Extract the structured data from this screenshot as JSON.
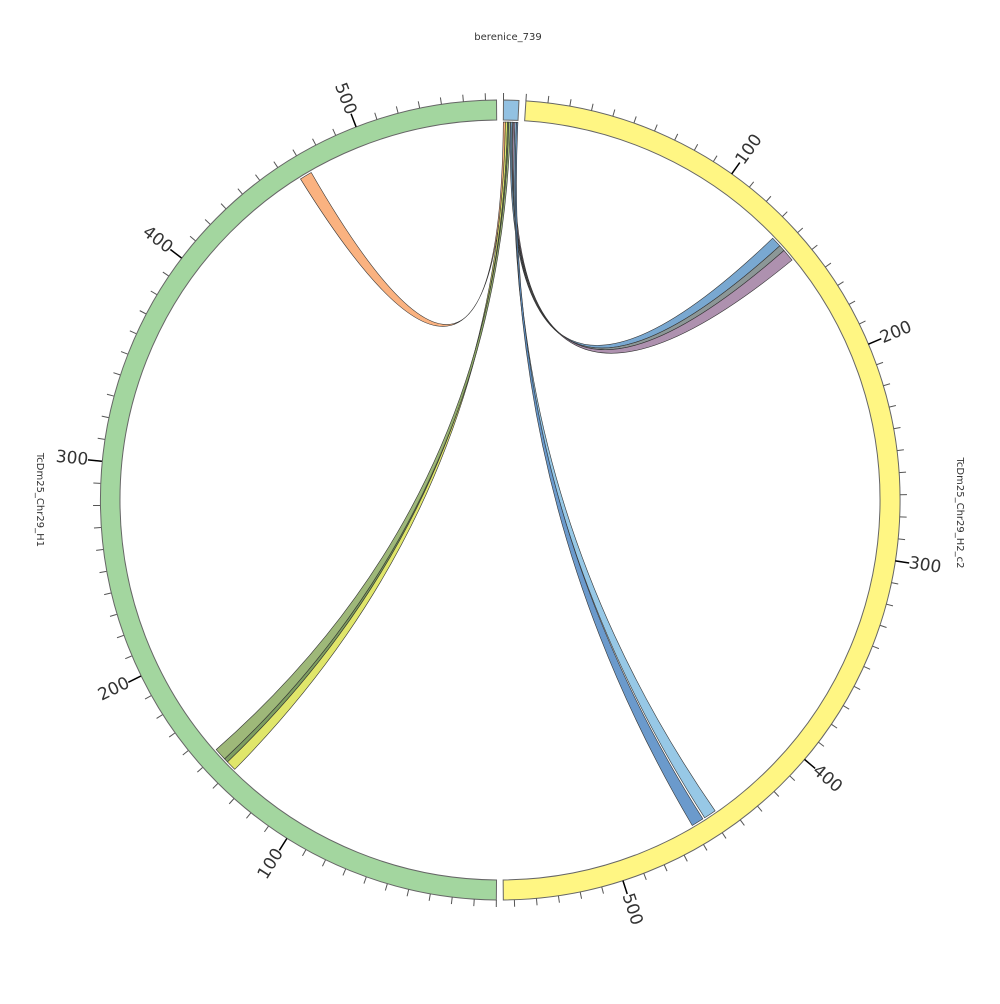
{
  "chart_data": {
    "type": "chord",
    "segments": [
      {
        "name": "berenice_739",
        "length": 7,
        "color": "#92c1e2",
        "major_ticks": [],
        "minor_tick_interval": 10
      },
      {
        "name": "TcDm25_Chr29_H2_c2",
        "length": 555,
        "color": "#fff683",
        "major_ticks": [
          100,
          200,
          300,
          400,
          500
        ],
        "minor_tick_interval": 10
      },
      {
        "name": "TcDm25_Chr29_H1",
        "length": 565,
        "color": "#a3d69f",
        "major_ticks": [
          100,
          200,
          300,
          400,
          500
        ],
        "minor_tick_interval": 10
      }
    ],
    "links": [
      {
        "source": "berenice_739",
        "source_range": [
          0,
          1
        ],
        "target": "TcDm25_Chr29_H1",
        "target_range": [
          466,
          472
        ],
        "color": "#f9aa72"
      },
      {
        "source": "berenice_739",
        "source_range": [
          1,
          2
        ],
        "target": "TcDm25_Chr29_H1",
        "target_range": [
          139,
          144
        ],
        "color": "#dde35a"
      },
      {
        "source": "berenice_739",
        "source_range": [
          2,
          2.6
        ],
        "target": "TcDm25_Chr29_H1",
        "target_range": [
          144,
          146
        ],
        "color": "#6f9450"
      },
      {
        "source": "berenice_739",
        "source_range": [
          2.6,
          3.5
        ],
        "target": "TcDm25_Chr29_H1",
        "target_range": [
          146,
          152
        ],
        "color": "#93b06a"
      },
      {
        "source": "berenice_739",
        "source_range": [
          3.5,
          4.3
        ],
        "target": "TcDm25_Chr29_H2_c2",
        "target_range": [
          134,
          139
        ],
        "color": "#6a9fcc"
      },
      {
        "source": "berenice_739",
        "source_range": [
          4.3,
          4.8
        ],
        "target": "TcDm25_Chr29_H2_c2",
        "target_range": [
          139,
          142
        ],
        "color": "#7f8c8c"
      },
      {
        "source": "berenice_739",
        "source_range": [
          4.8,
          5.6
        ],
        "target": "TcDm25_Chr29_H2_c2",
        "target_range": [
          142,
          148
        ],
        "color": "#a585a6"
      },
      {
        "source": "berenice_739",
        "source_range": [
          5.6,
          6.3
        ],
        "target": "TcDm25_Chr29_H2_c2",
        "target_range": [
          447,
          453
        ],
        "color": "#8cc2e3"
      },
      {
        "source": "berenice_739",
        "source_range": [
          6.3,
          7
        ],
        "target": "TcDm25_Chr29_H2_c2",
        "target_range": [
          454,
          460
        ],
        "color": "#5b8fc7"
      }
    ]
  }
}
